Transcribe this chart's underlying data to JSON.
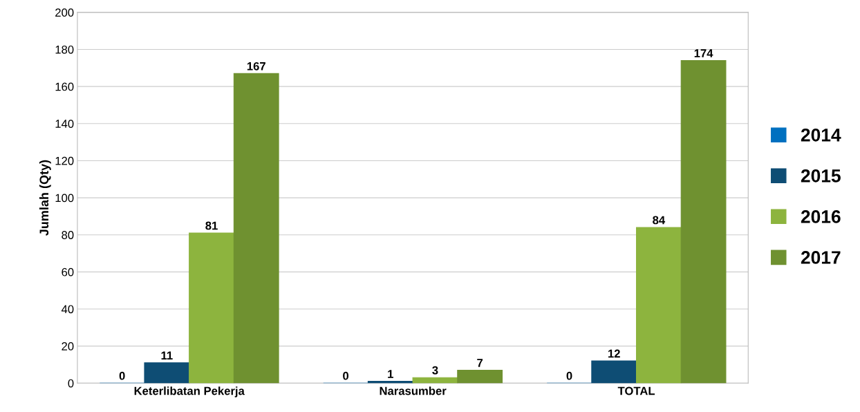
{
  "chart_data": {
    "type": "bar",
    "ylabel": "Jumlah (Qty)",
    "categories": [
      "Keterlibatan Pekerja",
      "Narasumber",
      "TOTAL"
    ],
    "series": [
      {
        "name": "2014",
        "color": "#0070c0",
        "values": [
          0,
          0,
          0
        ]
      },
      {
        "name": "2015",
        "color": "#0e4d74",
        "values": [
          11,
          1,
          12
        ]
      },
      {
        "name": "2016",
        "color": "#8db43e",
        "values": [
          81,
          3,
          84
        ]
      },
      {
        "name": "2017",
        "color": "#6f9130",
        "values": [
          167,
          7,
          174
        ]
      }
    ],
    "ylim": [
      0,
      200
    ],
    "yticks": [
      0,
      20,
      40,
      60,
      80,
      100,
      120,
      140,
      160,
      180,
      200
    ],
    "grid": "y",
    "legend": "right",
    "data_labels": true
  }
}
